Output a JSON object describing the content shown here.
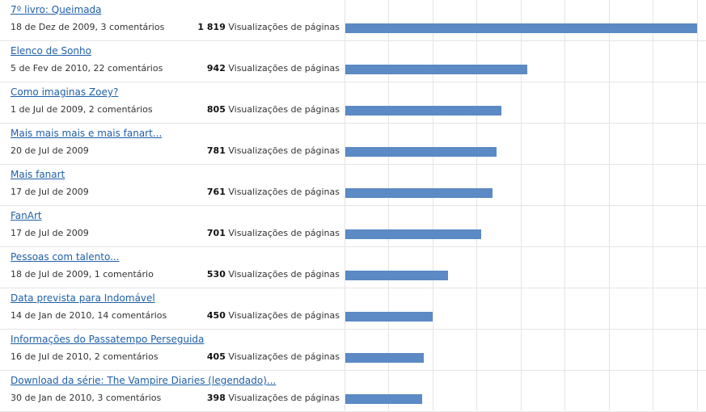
{
  "stats_unit_label": "Visualizações de páginas",
  "max_value": 1819,
  "colors": {
    "bar": "#5b8ac4",
    "link": "#1f5fa8",
    "grid": "#e4e4e4"
  },
  "posts": [
    {
      "title": "7º livro: Queimada",
      "meta": "18 de Dez de 2009, 3 comentários",
      "views_label": "1 819",
      "views": 1819
    },
    {
      "title": "Elenco de Sonho",
      "meta": "5 de Fev de 2010, 22 comentários",
      "views_label": "942",
      "views": 942
    },
    {
      "title": "Como imaginas Zoey?",
      "meta": "1 de Jul de 2009, 2 comentários",
      "views_label": "805",
      "views": 805
    },
    {
      "title": "Mais mais mais e mais fanart...",
      "meta": "20 de Jul de 2009",
      "views_label": "781",
      "views": 781
    },
    {
      "title": "Mais fanart",
      "meta": "17 de Jul de 2009",
      "views_label": "761",
      "views": 761
    },
    {
      "title": "FanArt",
      "meta": "17 de Jul de 2009",
      "views_label": "701",
      "views": 701
    },
    {
      "title": "Pessoas com talento...",
      "meta": "18 de Jul de 2009, 1 comentário",
      "views_label": "530",
      "views": 530
    },
    {
      "title": "Data prevista para Indomável",
      "meta": "14 de Jan de 2010, 14 comentários",
      "views_label": "450",
      "views": 450
    },
    {
      "title": "Informações do Passatempo Perseguida",
      "meta": "16 de Jul de 2010, 2 comentários",
      "views_label": "405",
      "views": 405
    },
    {
      "title": "Download da série: The Vampire Diaries (legendado)...",
      "meta": "30 de Jan de 2010, 3 comentários",
      "views_label": "398",
      "views": 398
    }
  ]
}
